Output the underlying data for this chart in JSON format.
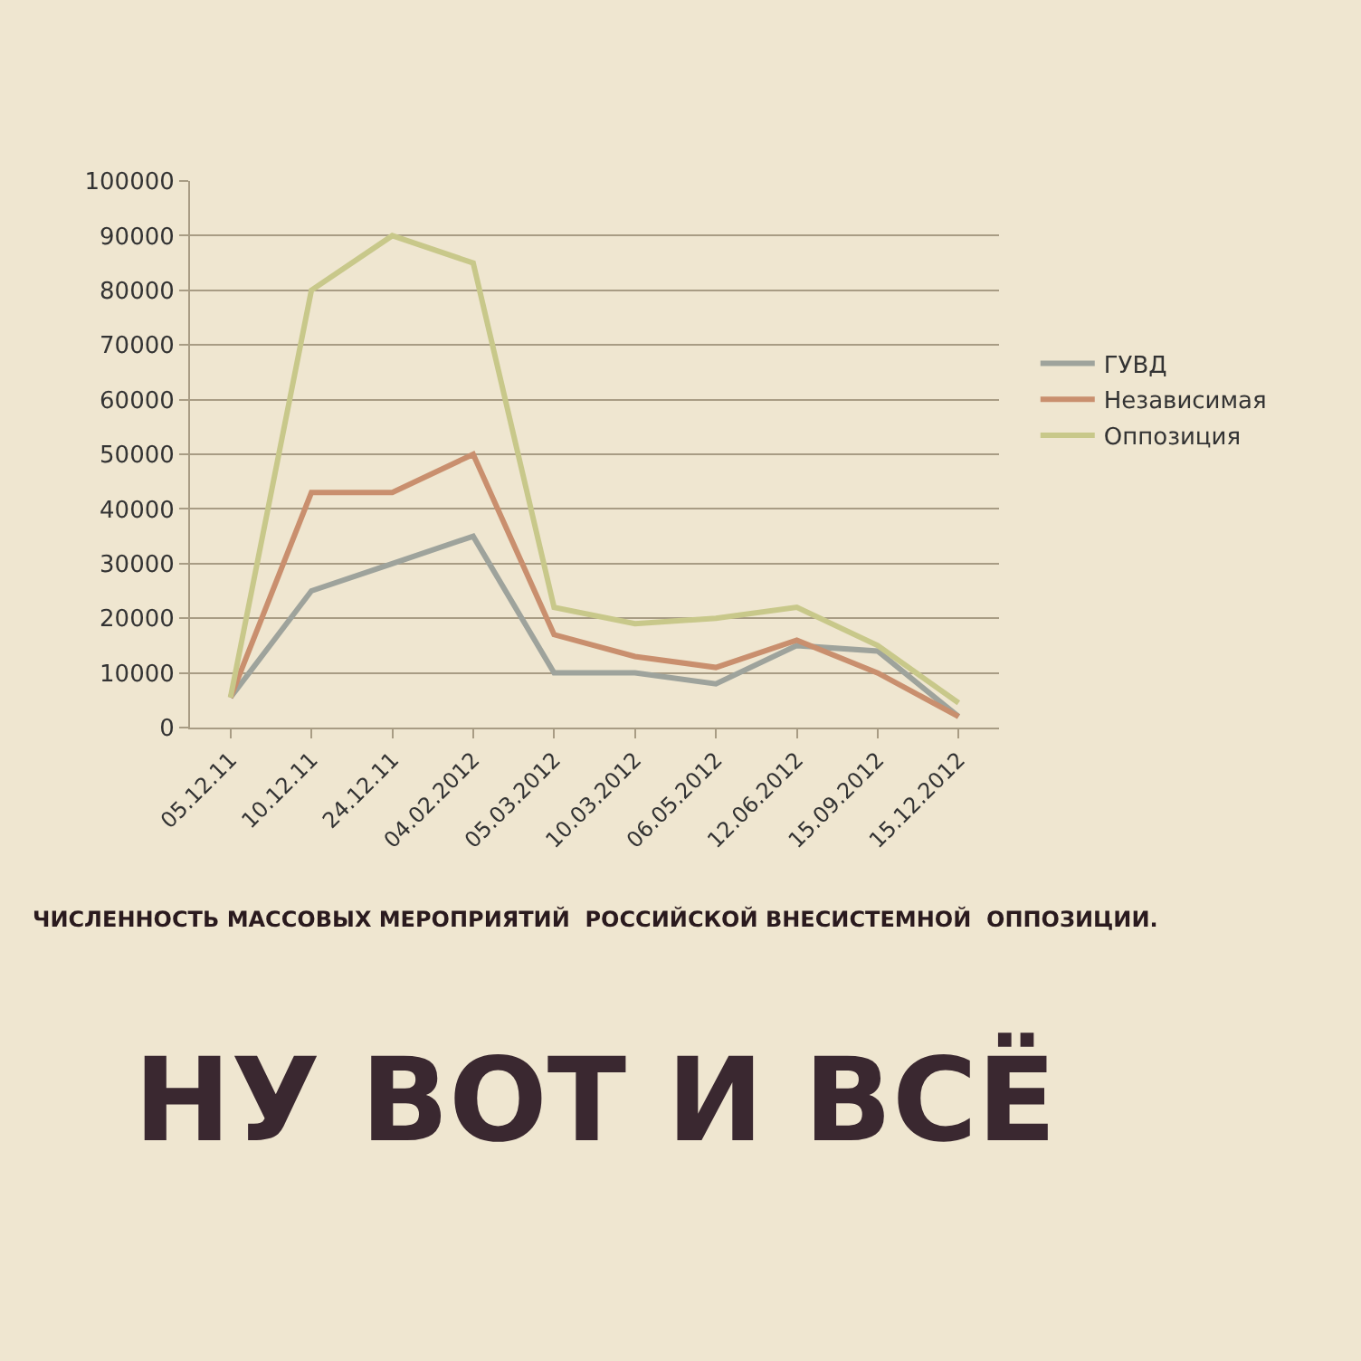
{
  "chart_data": {
    "type": "line",
    "title": "НУ ВОТ И ВСЁ",
    "subtitle": "ЧИСЛЕННОСТЬ МАССОВЫХ МЕРОПРИЯТИЙ  РОССИЙСКОЙ ВНЕСИСТЕМНОЙ  ОППОЗИЦИИ.",
    "categories": [
      "05.12.11",
      "10.12.11",
      "24.12.11",
      "04.02.2012",
      "05.03.2012",
      "10.03.2012",
      "06.05.2012",
      "12.06.2012",
      "15.09.2012",
      "15.12.2012"
    ],
    "series": [
      {
        "name": "ГУВД",
        "color": "#9ea39c",
        "values": [
          5500,
          25000,
          30000,
          35000,
          10000,
          10000,
          8000,
          15000,
          14000,
          2000
        ]
      },
      {
        "name": "Независимая",
        "color": "#c98f6e",
        "values": [
          5500,
          43000,
          43000,
          50000,
          17000,
          13000,
          11000,
          16000,
          10000,
          2000
        ]
      },
      {
        "name": "Оппозиция",
        "color": "#c8c88a",
        "values": [
          5500,
          80000,
          90000,
          85000,
          22000,
          19000,
          20000,
          22000,
          15000,
          4500
        ]
      }
    ],
    "ylim": [
      0,
      100000
    ],
    "yticks": [
      0,
      10000,
      20000,
      30000,
      40000,
      50000,
      60000,
      70000,
      80000,
      90000,
      100000
    ],
    "grid": "y",
    "legend": "right",
    "marker": "none",
    "line_style": "solid"
  }
}
